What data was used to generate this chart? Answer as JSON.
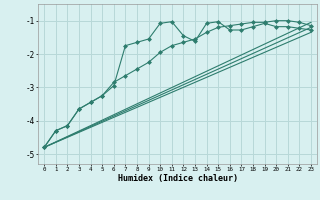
{
  "xlabel": "Humidex (Indice chaleur)",
  "bg_color": "#d8f0f0",
  "grid_color": "#b8d8d8",
  "line_color": "#2e7d6e",
  "xlim": [
    -0.5,
    23.5
  ],
  "ylim": [
    -5.3,
    -0.5
  ],
  "yticks": [
    -5,
    -4,
    -3,
    -2,
    -1
  ],
  "xticks": [
    0,
    1,
    2,
    3,
    4,
    5,
    6,
    7,
    8,
    9,
    10,
    11,
    12,
    13,
    14,
    15,
    16,
    17,
    18,
    19,
    20,
    21,
    22,
    23
  ],
  "line1_x": [
    0,
    1,
    2,
    3,
    4,
    5,
    6,
    7,
    8,
    9,
    10,
    11,
    12,
    13,
    14,
    15,
    16,
    17,
    18,
    19,
    20,
    21,
    22,
    23
  ],
  "line1_y": [
    -4.8,
    -4.3,
    -4.15,
    -3.65,
    -3.45,
    -3.25,
    -2.95,
    -1.75,
    -1.65,
    -1.55,
    -1.08,
    -1.03,
    -1.45,
    -1.62,
    -1.08,
    -1.03,
    -1.28,
    -1.28,
    -1.18,
    -1.08,
    -1.18,
    -1.18,
    -1.23,
    -1.28
  ],
  "line2_x": [
    0,
    1,
    2,
    3,
    4,
    5,
    6,
    7,
    8,
    9,
    10,
    11,
    12,
    13,
    14,
    15,
    16,
    17,
    18,
    19,
    20,
    21,
    22,
    23
  ],
  "line2_y": [
    -4.8,
    -4.3,
    -4.15,
    -3.65,
    -3.45,
    -3.25,
    -2.85,
    -2.65,
    -2.45,
    -2.25,
    -1.95,
    -1.75,
    -1.65,
    -1.55,
    -1.35,
    -1.2,
    -1.15,
    -1.1,
    -1.05,
    -1.05,
    -1.0,
    -1.0,
    -1.05,
    -1.15
  ],
  "line3_x": [
    0,
    23
  ],
  "line3_y": [
    -4.8,
    -1.05
  ],
  "line4_x": [
    0,
    23
  ],
  "line4_y": [
    -4.8,
    -1.2
  ],
  "line5_x": [
    0,
    23
  ],
  "line5_y": [
    -4.8,
    -1.35
  ]
}
